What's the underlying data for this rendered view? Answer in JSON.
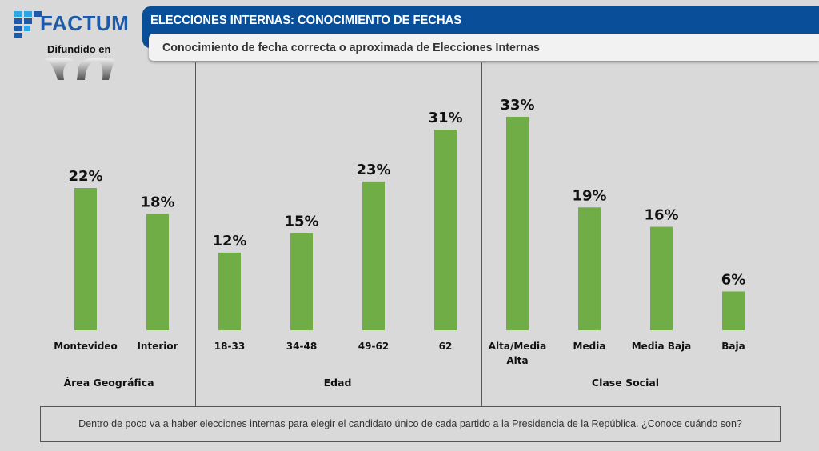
{
  "header": {
    "brand": "FACTUM",
    "diffused_label": "Difundido en",
    "title": "ELECCIONES INTERNAS: CONOCIMIENTO DE FECHAS",
    "subtitle": "Conocimiento de fecha correcta o aproximada de Elecciones Internas"
  },
  "footer": {
    "question": "Dentro de poco va a haber elecciones internas para elegir el candidato único de cada partido a la Presidencia de la República. ¿Conoce cuándo son?"
  },
  "colors": {
    "bar": "#70ad47",
    "title_bg": "#084e98",
    "brand": "#1f5aa8",
    "background": "#d9d9d9"
  },
  "chart_data": {
    "type": "bar",
    "title": "Conocimiento de fecha correcta o aproximada de Elecciones Internas",
    "xlabel": "",
    "ylabel": "",
    "ylim": [
      0,
      35
    ],
    "grid": false,
    "unit": "%",
    "groups": [
      {
        "name": "Área Geográfica",
        "categories": [
          "Montevideo",
          "Interior"
        ],
        "values": [
          22,
          18
        ],
        "labels": [
          "22%",
          "18%"
        ]
      },
      {
        "name": "Edad",
        "categories": [
          "18-33",
          "34-48",
          "49-62",
          "62"
        ],
        "values": [
          12,
          15,
          23,
          31
        ],
        "labels": [
          "12%",
          "15%",
          "23%",
          "31%"
        ]
      },
      {
        "name": "Clase Social",
        "categories": [
          "Alta/Media Alta",
          "Media",
          "Media Baja",
          "Baja"
        ],
        "values": [
          33,
          19,
          16,
          6
        ],
        "labels": [
          "33%",
          "19%",
          "16%",
          "6%"
        ]
      }
    ]
  }
}
